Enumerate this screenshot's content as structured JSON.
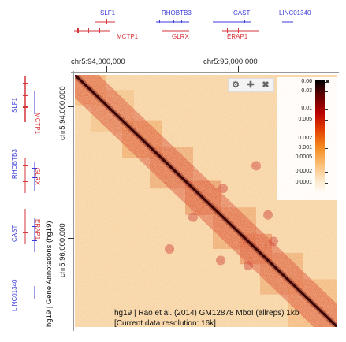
{
  "top_genes": {
    "blue": [
      "SLF1",
      "RHOBTB3",
      "CAST",
      "LINC01340"
    ],
    "red": [
      "MCTP1",
      "GLRX",
      "ERAP1"
    ]
  },
  "left_genes": {
    "blue": [
      "SLF1",
      "RHOBTB3",
      "CAST",
      "LINC01340"
    ],
    "red": [
      "MCTP1",
      "GLRX",
      "ERAP1"
    ]
  },
  "coords": {
    "top_1": "chr5:94,000,000",
    "top_2": "chr5:96,000,000",
    "left_1": "chr5:94,000,000",
    "left_2": "chr5:96,000,000"
  },
  "track_label": "hg19 | Gene Annotations (hg19)",
  "legend": {
    "values": [
      "0.06",
      "0.03",
      "0.01",
      "0.005",
      "0.002",
      "0.001",
      "0.0005",
      "0.0002",
      "0.0001"
    ]
  },
  "controls": {
    "gear": "gear-icon",
    "move": "move-icon",
    "close": "close-icon"
  },
  "caption": {
    "line1": "hg19 | Rao et al. (2014) GM12878 MboI (allreps) 1kb",
    "line2": "[Current data resolution: 16k]"
  },
  "colors": {
    "blue": "#3a3ad6",
    "red": "#d6363a",
    "heat_low": "#fff5e6",
    "heat_high": "#1a0000"
  }
}
